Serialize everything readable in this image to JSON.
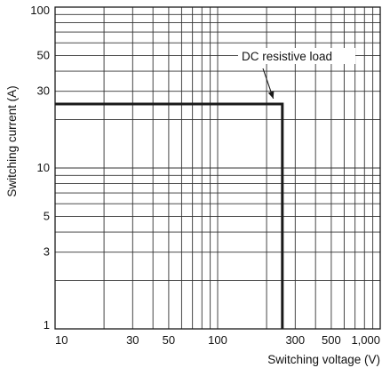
{
  "chart_data": {
    "type": "line",
    "title": "",
    "xlabel": "Switching voltage (V)",
    "ylabel": "Switching current (A)",
    "xscale": "log",
    "yscale": "log",
    "xlim": [
      10,
      1000
    ],
    "ylim": [
      1,
      100
    ],
    "grid": true,
    "x_ticks": [
      {
        "value": 10,
        "label": "10"
      },
      {
        "value": 30,
        "label": "30"
      },
      {
        "value": 50,
        "label": "50"
      },
      {
        "value": 100,
        "label": "100"
      },
      {
        "value": 300,
        "label": "300"
      },
      {
        "value": 500,
        "label": "500"
      },
      {
        "value": 1000,
        "label": "1,000"
      }
    ],
    "y_ticks": [
      {
        "value": 1,
        "label": "1"
      },
      {
        "value": 3,
        "label": "3"
      },
      {
        "value": 5,
        "label": "5"
      },
      {
        "value": 10,
        "label": "10"
      },
      {
        "value": 30,
        "label": "30"
      },
      {
        "value": 50,
        "label": "50"
      },
      {
        "value": 100,
        "label": "100"
      }
    ],
    "series": [
      {
        "name": "DC resistive load",
        "x": [
          10,
          250,
          250
        ],
        "y": [
          25,
          25,
          1
        ]
      }
    ],
    "annotations": [
      {
        "text": "DC resistive load",
        "arrow_to": [
          220,
          25
        ]
      }
    ]
  },
  "colors": {
    "line": "#1a1a1a",
    "grid": "#333333",
    "text": "#111111"
  }
}
